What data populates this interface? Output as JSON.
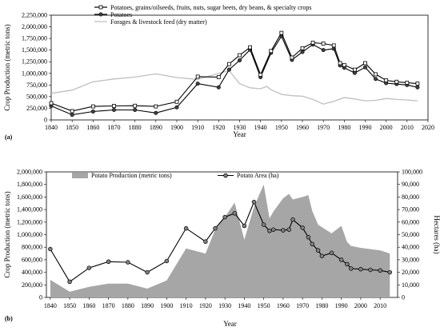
{
  "chart_data": [
    {
      "panel_label": "(a)",
      "type": "line",
      "xlabel": "Year",
      "ylabel": "Crop Production (metric tons)",
      "xlim": [
        1840,
        2020
      ],
      "ylim": [
        0,
        2250000
      ],
      "xticks": [
        1840,
        1850,
        1860,
        1870,
        1880,
        1890,
        1900,
        1910,
        1920,
        1930,
        1940,
        1950,
        1960,
        1970,
        1980,
        1990,
        2000,
        2010,
        2020
      ],
      "yticks": [
        0,
        250000,
        500000,
        750000,
        1000000,
        1250000,
        1500000,
        1750000,
        2000000,
        2250000
      ],
      "ytick_labels": [
        "0",
        "250,000",
        "500,000",
        "750,000",
        "1,000,000",
        "1,250,000",
        "1,500,000",
        "1,750,000",
        "2,000,000",
        "2,250,000"
      ],
      "legend_position": "top-right",
      "series": [
        {
          "name": "Potatoes, grains/oilseeds, fruits, nuts, sugar beets, dry beans, & specialty crops",
          "color": "#000000",
          "marker": "square",
          "points": [
            [
              1840,
              360000
            ],
            [
              1850,
              190000
            ],
            [
              1860,
              290000
            ],
            [
              1870,
              300000
            ],
            [
              1880,
              305000
            ],
            [
              1890,
              290000
            ],
            [
              1900,
              390000
            ],
            [
              1910,
              930000
            ],
            [
              1920,
              920000
            ],
            [
              1925,
              1200000
            ],
            [
              1930,
              1390000
            ],
            [
              1935,
              1560000
            ],
            [
              1940,
              970000
            ],
            [
              1945,
              1480000
            ],
            [
              1950,
              1870000
            ],
            [
              1955,
              1340000
            ],
            [
              1960,
              1540000
            ],
            [
              1965,
              1660000
            ],
            [
              1970,
              1640000
            ],
            [
              1975,
              1600000
            ],
            [
              1978,
              1220000
            ],
            [
              1980,
              1180000
            ],
            [
              1985,
              1080000
            ],
            [
              1990,
              1220000
            ],
            [
              1995,
              980000
            ],
            [
              2000,
              850000
            ],
            [
              2005,
              820000
            ],
            [
              2010,
              800000
            ],
            [
              2015,
              780000
            ]
          ]
        },
        {
          "name": "Potatoes",
          "color": "#000000",
          "marker": "circle",
          "points": [
            [
              1840,
              300000
            ],
            [
              1850,
              110000
            ],
            [
              1860,
              180000
            ],
            [
              1870,
              215000
            ],
            [
              1880,
              215000
            ],
            [
              1890,
              150000
            ],
            [
              1900,
              270000
            ],
            [
              1910,
              780000
            ],
            [
              1920,
              700000
            ],
            [
              1925,
              1080000
            ],
            [
              1930,
              1280000
            ],
            [
              1935,
              1510000
            ],
            [
              1940,
              920000
            ],
            [
              1945,
              1440000
            ],
            [
              1950,
              1800000
            ],
            [
              1955,
              1290000
            ],
            [
              1960,
              1460000
            ],
            [
              1965,
              1620000
            ],
            [
              1970,
              1500000
            ],
            [
              1975,
              1530000
            ],
            [
              1978,
              1170000
            ],
            [
              1980,
              1120000
            ],
            [
              1985,
              1010000
            ],
            [
              1990,
              1130000
            ],
            [
              1995,
              880000
            ],
            [
              2000,
              790000
            ],
            [
              2005,
              770000
            ],
            [
              2010,
              750000
            ],
            [
              2015,
              700000
            ]
          ]
        },
        {
          "name": "Forages & livestock feed (dry matter)",
          "color": "#bfbfbf",
          "marker": "none",
          "points": [
            [
              1840,
              570000
            ],
            [
              1850,
              640000
            ],
            [
              1860,
              820000
            ],
            [
              1870,
              880000
            ],
            [
              1880,
              920000
            ],
            [
              1890,
              990000
            ],
            [
              1900,
              910000
            ],
            [
              1910,
              870000
            ],
            [
              1920,
              1000000
            ],
            [
              1925,
              1060000
            ],
            [
              1930,
              780000
            ],
            [
              1935,
              690000
            ],
            [
              1940,
              670000
            ],
            [
              1943,
              720000
            ],
            [
              1945,
              650000
            ],
            [
              1950,
              550000
            ],
            [
              1955,
              520000
            ],
            [
              1960,
              510000
            ],
            [
              1965,
              440000
            ],
            [
              1970,
              340000
            ],
            [
              1975,
              400000
            ],
            [
              1980,
              480000
            ],
            [
              1985,
              450000
            ],
            [
              1990,
              410000
            ],
            [
              1995,
              420000
            ],
            [
              2000,
              460000
            ],
            [
              2005,
              440000
            ],
            [
              2010,
              430000
            ],
            [
              2015,
              410000
            ]
          ]
        }
      ]
    },
    {
      "panel_label": "(b)",
      "type": "area",
      "xlabel": "Year",
      "ylabel": "Crop Production (metric tons)",
      "y2label": "Hectares (ha)",
      "xlim": [
        1838,
        2019
      ],
      "ylim": [
        0,
        2000000
      ],
      "y2lim": [
        0,
        100000
      ],
      "xticks": [
        1840,
        1850,
        1860,
        1870,
        1880,
        1890,
        1900,
        1910,
        1920,
        1930,
        1940,
        1950,
        1960,
        1970,
        1980,
        1990,
        2000,
        2010
      ],
      "yticks": [
        0,
        200000,
        400000,
        600000,
        800000,
        1000000,
        1200000,
        1400000,
        1600000,
        1800000,
        2000000
      ],
      "ytick_labels": [
        "0",
        "200,000",
        "400,000",
        "600,000",
        "800,000",
        "1,000,000",
        "1,200,000",
        "1,400,000",
        "1,600,000",
        "1,800,000",
        "2,000,000"
      ],
      "y2ticks": [
        0,
        10000,
        20000,
        30000,
        40000,
        50000,
        60000,
        70000,
        80000,
        90000,
        100000
      ],
      "y2tick_labels": [
        "0",
        "10,000",
        "20,000",
        "30,000",
        "40,000",
        "50,000",
        "60,000",
        "70,000",
        "80,000",
        "90,000",
        "100,000"
      ],
      "legend_position": "top-left",
      "series": [
        {
          "name": "Potato Production (metric tons)",
          "type": "area",
          "axis": "left",
          "color": "#a6a6a6",
          "points": [
            [
              1840,
              280000
            ],
            [
              1850,
              90000
            ],
            [
              1860,
              170000
            ],
            [
              1870,
              220000
            ],
            [
              1880,
              220000
            ],
            [
              1890,
              140000
            ],
            [
              1900,
              270000
            ],
            [
              1910,
              780000
            ],
            [
              1920,
              700000
            ],
            [
              1925,
              1080000
            ],
            [
              1930,
              1280000
            ],
            [
              1935,
              1510000
            ],
            [
              1940,
              920000
            ],
            [
              1945,
              1440000
            ],
            [
              1950,
              1800000
            ],
            [
              1953,
              1260000
            ],
            [
              1955,
              1370000
            ],
            [
              1960,
              1580000
            ],
            [
              1963,
              1650000
            ],
            [
              1965,
              1560000
            ],
            [
              1970,
              1600000
            ],
            [
              1973,
              1630000
            ],
            [
              1975,
              1380000
            ],
            [
              1978,
              1160000
            ],
            [
              1980,
              1120000
            ],
            [
              1985,
              1020000
            ],
            [
              1990,
              1140000
            ],
            [
              1993,
              880000
            ],
            [
              1995,
              820000
            ],
            [
              2000,
              790000
            ],
            [
              2005,
              770000
            ],
            [
              2010,
              750000
            ],
            [
              2015,
              700000
            ]
          ]
        },
        {
          "name": "Potato Area (ha)",
          "type": "line",
          "axis": "right",
          "color": "#000000",
          "marker": "circle",
          "points": [
            [
              1840,
              38500
            ],
            [
              1850,
              12500
            ],
            [
              1860,
              23500
            ],
            [
              1870,
              28500
            ],
            [
              1880,
              28000
            ],
            [
              1890,
              20000
            ],
            [
              1900,
              29000
            ],
            [
              1910,
              55000
            ],
            [
              1920,
              44500
            ],
            [
              1925,
              55000
            ],
            [
              1930,
              64000
            ],
            [
              1935,
              67000
            ],
            [
              1940,
              57000
            ],
            [
              1945,
              76000
            ],
            [
              1950,
              58000
            ],
            [
              1953,
              53000
            ],
            [
              1955,
              54000
            ],
            [
              1960,
              53500
            ],
            [
              1963,
              54000
            ],
            [
              1965,
              62000
            ],
            [
              1970,
              55500
            ],
            [
              1973,
              48000
            ],
            [
              1975,
              42500
            ],
            [
              1978,
              37500
            ],
            [
              1980,
              33000
            ],
            [
              1985,
              35500
            ],
            [
              1990,
              30000
            ],
            [
              1993,
              26500
            ],
            [
              1995,
              23000
            ],
            [
              2000,
              22500
            ],
            [
              2005,
              22000
            ],
            [
              2010,
              21500
            ],
            [
              2015,
              20000
            ]
          ]
        }
      ]
    }
  ]
}
